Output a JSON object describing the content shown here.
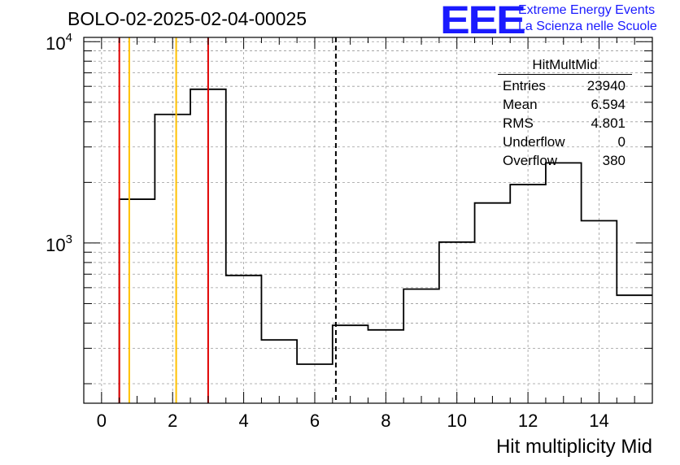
{
  "header": {
    "title": "BOLO-02-2025-02-04-00025",
    "logo_text": "EEE",
    "logo_line1": "Extreme Energy Events",
    "logo_line2": "La Scienza nelle Scuole"
  },
  "stats": {
    "name": "HitMultMid",
    "rows": [
      {
        "label": "Entries",
        "value": "23940"
      },
      {
        "label": "Mean",
        "value": "6.594"
      },
      {
        "label": "RMS",
        "value": "4.801"
      },
      {
        "label": "Underflow",
        "value": "0"
      },
      {
        "label": "Overflow",
        "value": "380"
      }
    ]
  },
  "chart_data": {
    "type": "bar",
    "histogram": true,
    "xlabel": "Hit multiplicity Mid",
    "ylabel": "",
    "xlim": [
      -0.5,
      15.5
    ],
    "ylim": [
      160,
      10500
    ],
    "log_y": true,
    "grid": true,
    "x_ticks": [
      0,
      2,
      4,
      6,
      8,
      10,
      12,
      14
    ],
    "y_tick_labels": [
      "10^3",
      "10^4"
    ],
    "bin_edges": [
      0.5,
      1.5,
      2.5,
      3.5,
      4.5,
      5.5,
      6.5,
      7.5,
      8.5,
      9.5,
      10.5,
      11.5,
      12.5,
      13.5,
      14.5,
      15.5
    ],
    "values": [
      1650,
      4350,
      5800,
      690,
      330,
      250,
      390,
      370,
      590,
      1010,
      1580,
      1950,
      2500,
      1290,
      550
    ],
    "vertical_lines": [
      {
        "x": 0.5,
        "color": "#e00000",
        "style": "solid"
      },
      {
        "x": 0.78,
        "color": "#ffc000",
        "style": "solid"
      },
      {
        "x": 2.1,
        "color": "#ffc000",
        "style": "solid"
      },
      {
        "x": 3.0,
        "color": "#e00000",
        "style": "solid"
      },
      {
        "x": 6.594,
        "color": "#000000",
        "style": "dashed"
      }
    ]
  }
}
